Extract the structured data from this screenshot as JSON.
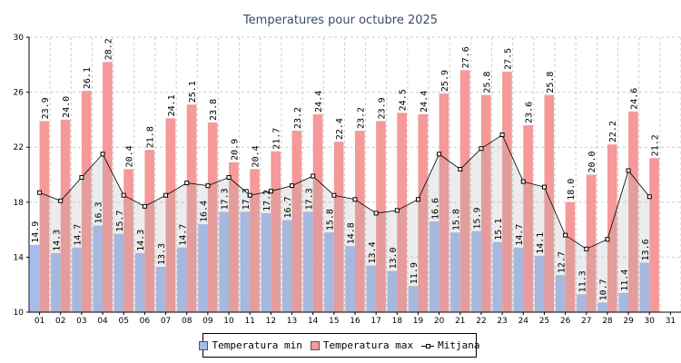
{
  "chart_data": {
    "type": "bar",
    "title": "Temperatures pour octubre 2025",
    "xlabel": "",
    "ylabel": "",
    "ylim": [
      10,
      30
    ],
    "yticks": [
      10,
      14,
      18,
      22,
      26,
      30
    ],
    "categories": [
      "01",
      "02",
      "03",
      "04",
      "05",
      "06",
      "07",
      "08",
      "09",
      "10",
      "11",
      "12",
      "13",
      "14",
      "15",
      "16",
      "17",
      "18",
      "19",
      "20",
      "21",
      "22",
      "23",
      "24",
      "25",
      "26",
      "27",
      "28",
      "29",
      "30",
      "31"
    ],
    "series": [
      {
        "name": "Temperatura min",
        "kind": "bar",
        "color": "#a6bdec",
        "values": [
          14.9,
          14.3,
          14.7,
          16.3,
          15.7,
          14.3,
          13.3,
          14.7,
          16.4,
          17.3,
          17.3,
          17.2,
          16.7,
          17.3,
          15.8,
          14.8,
          13.4,
          13.0,
          11.9,
          16.6,
          15.8,
          15.9,
          15.1,
          14.7,
          14.1,
          12.7,
          11.3,
          10.7,
          11.4,
          13.6,
          null
        ],
        "labels": [
          "14.9",
          "14.3",
          "14.7",
          "16.3",
          "15.7",
          "14.3",
          "13.3",
          "14.7",
          "16.4",
          "17.3",
          "17.3",
          "17.2",
          "16.7",
          "17.3",
          "15.8",
          "14.8",
          "13.4",
          "13.0",
          "11.9",
          "16.6",
          "15.8",
          "15.9",
          "15.1",
          "14.7",
          "14.1",
          "12.7",
          "11.3",
          "10.7",
          "11.4",
          "13.6",
          ""
        ]
      },
      {
        "name": "Temperatura max",
        "kind": "bar",
        "color": "#f59999",
        "values": [
          23.9,
          24.0,
          26.1,
          28.2,
          20.4,
          21.8,
          24.1,
          25.1,
          23.8,
          20.9,
          20.4,
          21.7,
          23.2,
          24.4,
          22.4,
          23.2,
          23.9,
          24.5,
          24.4,
          25.9,
          27.6,
          25.8,
          27.5,
          23.6,
          25.8,
          18.0,
          20.0,
          22.2,
          24.6,
          21.2,
          null
        ],
        "labels": [
          "23.9",
          "24.0",
          "26.1",
          "28.2",
          "20.4",
          "21.8",
          "24.1",
          "25.1",
          "23.8",
          "20.9",
          "20.4",
          "21.7",
          "23.2",
          "24.4",
          "22.4",
          "23.2",
          "23.9",
          "24.5",
          "24.4",
          "25.9",
          "27.6",
          "25.8",
          "27.5",
          "23.6",
          "25.8",
          "18.0",
          "20.0",
          "22.2",
          "24.6",
          "21.2",
          ""
        ]
      },
      {
        "name": "Mitjana",
        "kind": "line",
        "color": "#000000",
        "values": [
          18.7,
          18.1,
          19.8,
          21.5,
          18.5,
          17.7,
          18.5,
          19.4,
          19.2,
          19.8,
          18.5,
          18.8,
          19.2,
          19.9,
          18.5,
          18.2,
          17.2,
          17.4,
          18.2,
          21.5,
          20.4,
          21.9,
          22.9,
          19.5,
          19.1,
          15.6,
          14.6,
          15.3,
          20.3,
          18.4,
          null
        ]
      }
    ],
    "legend_position": "bottom-center",
    "grid": true
  }
}
